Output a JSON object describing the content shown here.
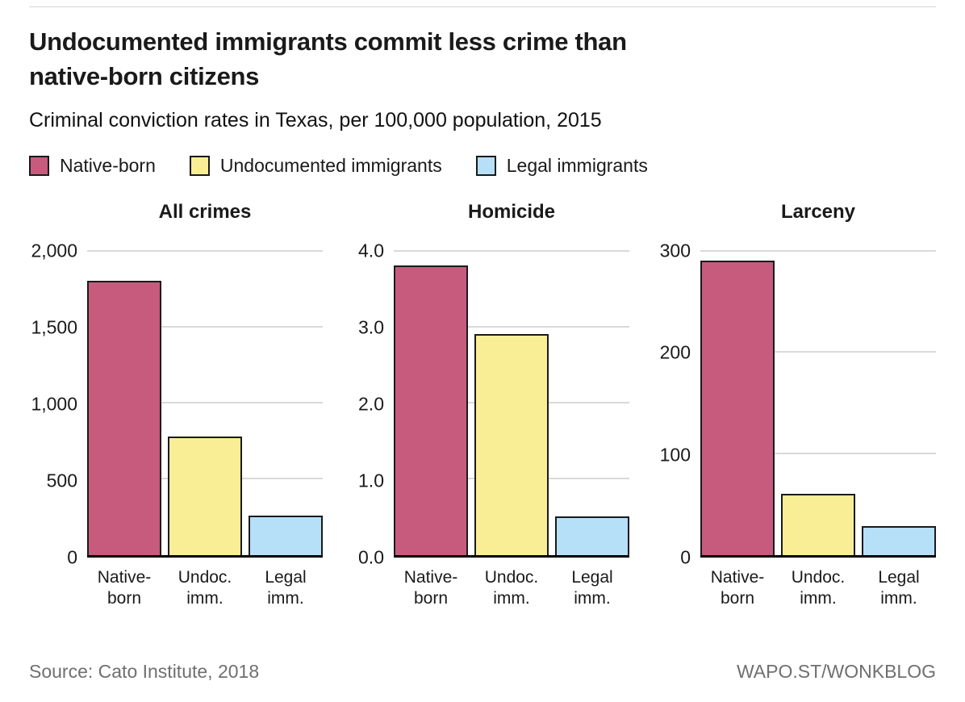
{
  "header": {
    "title_lines": [
      "Undocumented immigrants commit less crime than",
      "native-born citizens"
    ],
    "subtitle": "Criminal conviction rates in Texas, per 100,000 population, 2015"
  },
  "legend": [
    {
      "label": "Native-born",
      "color": "#c65b7e"
    },
    {
      "label": "Undocumented immigrants",
      "color": "#f9ee96"
    },
    {
      "label": "Legal immigrants",
      "color": "#b5e0f7"
    }
  ],
  "colors": {
    "bar_border": "#1a1a1a",
    "grid": "#d9d9d9",
    "axis": "#000000",
    "footer_text": "#6f6f6f"
  },
  "chart_data": [
    {
      "type": "bar",
      "title": "All crimes",
      "categories": [
        [
          "Native-",
          "born"
        ],
        [
          "Undoc.",
          "imm."
        ],
        [
          "Legal",
          "imm."
        ]
      ],
      "values": [
        1800,
        780,
        260
      ],
      "ylim": [
        0,
        2000
      ],
      "yticks": [
        0,
        500,
        1000,
        1500,
        2000
      ],
      "ytick_labels": [
        "0",
        "500",
        "1,000",
        "1,500",
        "2,000"
      ],
      "grid": true,
      "legend_position": "top"
    },
    {
      "type": "bar",
      "title": "Homicide",
      "categories": [
        [
          "Native-",
          "born"
        ],
        [
          "Undoc.",
          "imm."
        ],
        [
          "Legal",
          "imm."
        ]
      ],
      "values": [
        3.8,
        2.9,
        0.5
      ],
      "ylim": [
        0,
        4
      ],
      "yticks": [
        0,
        1,
        2,
        3,
        4
      ],
      "ytick_labels": [
        "0.0",
        "1.0",
        "2.0",
        "3.0",
        "4.0"
      ],
      "grid": true,
      "legend_position": "top"
    },
    {
      "type": "bar",
      "title": "Larceny",
      "categories": [
        [
          "Native-",
          "born"
        ],
        [
          "Undoc.",
          "imm."
        ],
        [
          "Legal",
          "imm."
        ]
      ],
      "values": [
        290,
        60,
        28
      ],
      "ylim": [
        0,
        300
      ],
      "yticks": [
        0,
        100,
        200,
        300
      ],
      "ytick_labels": [
        "0",
        "100",
        "200",
        "300"
      ],
      "grid": true,
      "legend_position": "top"
    }
  ],
  "footer": {
    "source": "Source: Cato Institute, 2018",
    "site": "WAPO.ST/WONKBLOG"
  }
}
